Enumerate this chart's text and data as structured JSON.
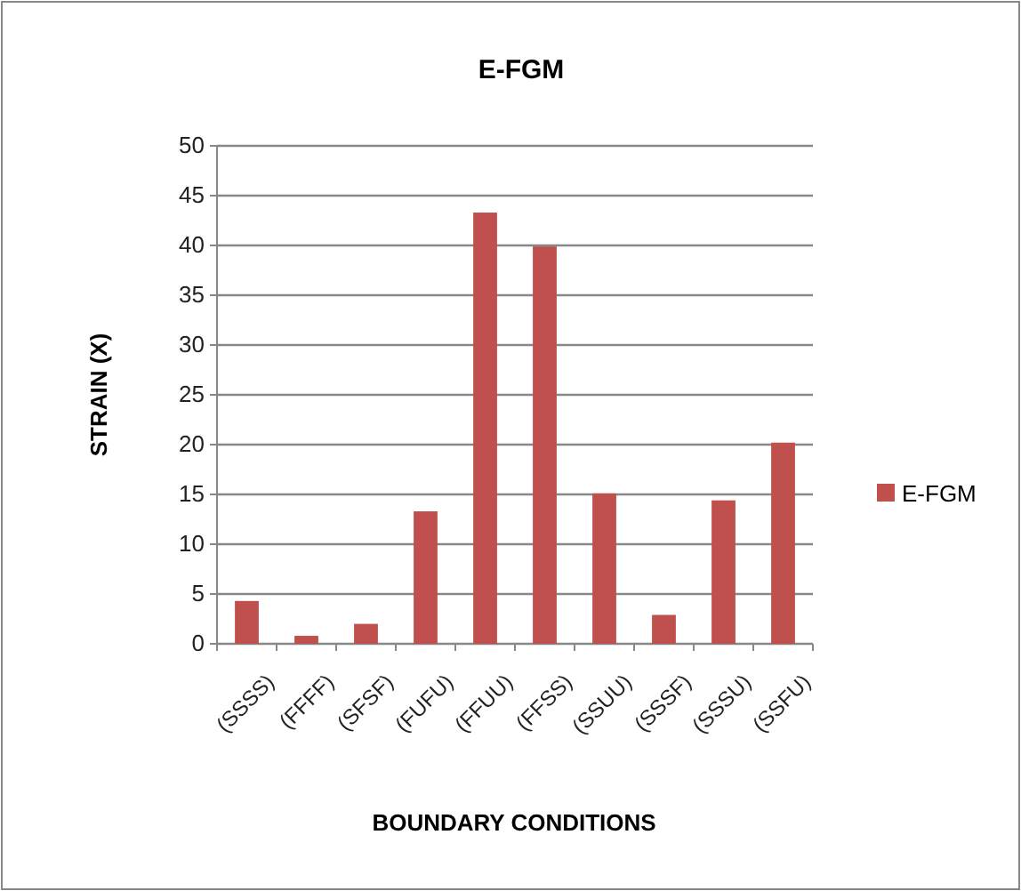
{
  "chart_data": {
    "type": "bar",
    "title": "E-FGM",
    "xlabel": "BOUNDARY CONDITIONS",
    "ylabel": "STRAIN (X)",
    "categories": [
      "(SSSS)",
      "(FFFF)",
      "(SFSF)",
      "(FUFU)",
      "(FFUU)",
      "(FFSS)",
      "(SSUU)",
      "(SSSF)",
      "(SSSU)",
      "(SSFU)"
    ],
    "series": [
      {
        "name": "E-FGM",
        "color": "#c0504d",
        "values": [
          4.3,
          0.8,
          2.0,
          13.3,
          43.3,
          39.9,
          15.1,
          2.9,
          14.4,
          20.2
        ]
      }
    ],
    "ylim": [
      0,
      50
    ],
    "yticks": [
      0,
      5,
      10,
      15,
      20,
      25,
      30,
      35,
      40,
      45,
      50
    ],
    "grid": "y",
    "legend": "right"
  }
}
